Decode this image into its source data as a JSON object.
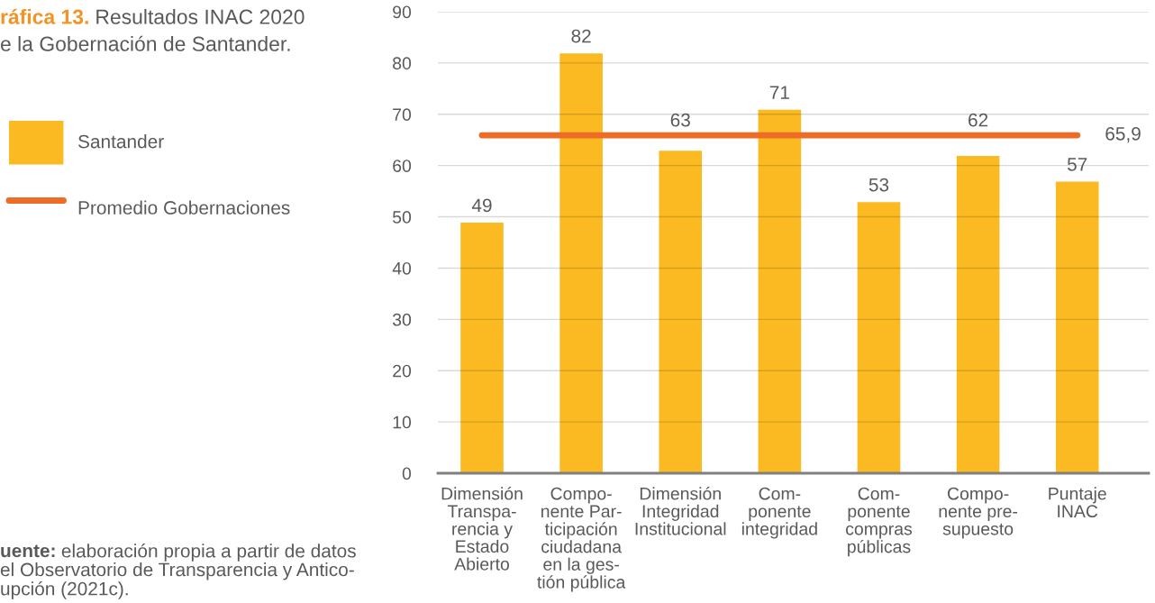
{
  "chart_data": {
    "type": "bar",
    "title": "ráfica 13. Resultados INAC 2020\ne la Gobernación de Santander.",
    "annotations": [
      "uente: elaboración propia a partir de datos\nel Observatorio de Transparencia y Antico-\nupción (2021c)."
    ],
    "categories": [
      "Dimensión\nTranspa-\nrencia y\nEstado\nAbierto",
      "Compo-\nnente Par-\nticipación\nciudadana\nen la ges-\ntión pública",
      "Dimensión\nIntegridad\nInstitucional",
      "Com-\nponente\nintegridad",
      "Com-\nponente\ncompras\npúblicas",
      "Compo-\nnente pre-\nsupuesto",
      "Puntaje\nINAC"
    ],
    "series": [
      {
        "name": "Santander",
        "color": "#fbba22",
        "values": [
          49,
          82,
          63,
          71,
          53,
          62,
          57
        ],
        "value_labels": [
          "49",
          "82",
          "63",
          "71",
          "53",
          "62",
          "57"
        ]
      },
      {
        "name": "Promedio Gobernaciones",
        "type": "line",
        "color": "#ee6c26",
        "values": [
          65.9,
          65.9,
          65.9,
          65.9,
          65.9,
          65.9,
          65.9
        ],
        "value_labels": [
          null,
          null,
          null,
          null,
          null,
          null,
          "65,9"
        ]
      }
    ],
    "ylim": [
      0,
      90
    ],
    "yticks": [
      0,
      10,
      20,
      30,
      40,
      50,
      60,
      70,
      80,
      90
    ],
    "grid": "y",
    "legend": "left"
  }
}
